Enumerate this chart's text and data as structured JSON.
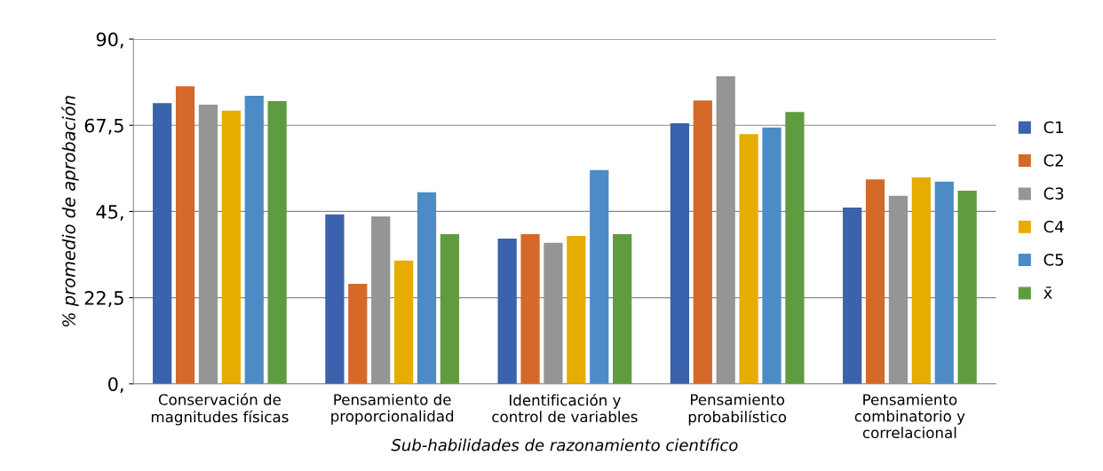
{
  "chart_data": {
    "type": "bar",
    "xlabel": "Sub-habilidades de razonamiento científico",
    "ylabel": "% promedio de aprobación",
    "categories": [
      "Conservación de\nmagnitudes físicas",
      "Pensamiento de\nproporcionalidad",
      "Identificación y\ncontrol de variables",
      "Pensamiento\nprobabilístico",
      "Pensamiento\ncombinatorio y\ncorrelacional"
    ],
    "series": [
      {
        "name": "C1",
        "color": "#3a62ad",
        "values": [
          73.3,
          44.2,
          37.9,
          68.0,
          46.0
        ]
      },
      {
        "name": "C2",
        "color": "#d4692a",
        "values": [
          77.7,
          26.1,
          39.1,
          74.0,
          53.4
        ]
      },
      {
        "name": "C3",
        "color": "#959595",
        "values": [
          72.9,
          43.7,
          36.8,
          80.3,
          49.1
        ]
      },
      {
        "name": "C4",
        "color": "#e6ac00",
        "values": [
          71.3,
          32.2,
          38.6,
          65.2,
          53.9
        ]
      },
      {
        "name": "C5",
        "color": "#4c8bc6",
        "values": [
          75.2,
          50.0,
          55.8,
          66.9,
          52.8
        ]
      },
      {
        "name": "x̄",
        "color": "#5f9b3f",
        "values": [
          73.8,
          39.1,
          39.1,
          71.0,
          50.4
        ]
      }
    ],
    "ylim": [
      0,
      90
    ],
    "yticks": [
      {
        "value": 0,
        "label": "0,"
      },
      {
        "value": 22.5,
        "label": "22,5"
      },
      {
        "value": 45,
        "label": "45,"
      },
      {
        "value": 67.5,
        "label": "67,5"
      },
      {
        "value": 90,
        "label": "90,"
      }
    ],
    "grid": "y",
    "legend": "right"
  }
}
